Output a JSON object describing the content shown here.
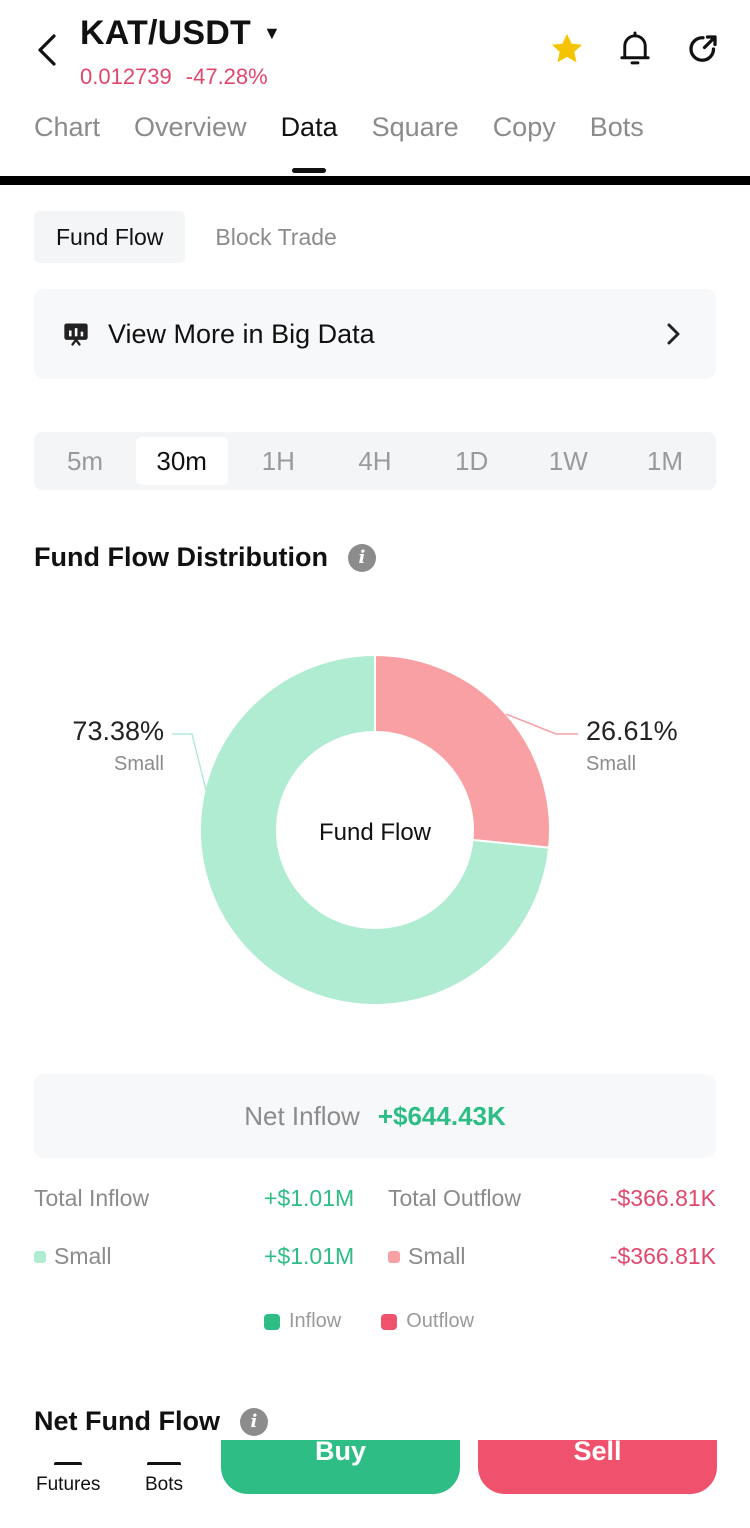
{
  "header": {
    "pair": "KAT/USDT",
    "price": "0.012739",
    "change": "-47.28%",
    "icons": [
      "back-chevron-icon",
      "star-icon",
      "bell-icon",
      "share-icon"
    ]
  },
  "tabs": [
    {
      "label": "Chart"
    },
    {
      "label": "Overview"
    },
    {
      "label": "Data",
      "active": true
    },
    {
      "label": "Square"
    },
    {
      "label": "Copy"
    },
    {
      "label": "Bots"
    }
  ],
  "subtabs": [
    {
      "label": "Fund Flow",
      "active": true
    },
    {
      "label": "Block Trade"
    }
  ],
  "banner": {
    "label": "View More in Big Data"
  },
  "intervals": [
    {
      "label": "5m"
    },
    {
      "label": "30m",
      "active": true
    },
    {
      "label": "1H"
    },
    {
      "label": "4H"
    },
    {
      "label": "1D"
    },
    {
      "label": "1W"
    },
    {
      "label": "1M"
    }
  ],
  "distribution": {
    "title": "Fund Flow Distribution",
    "center_label": "Fund Flow"
  },
  "chart_data": {
    "type": "pie",
    "donut": true,
    "center_label": "Fund Flow",
    "slices": [
      {
        "label": "Small",
        "group": "Outflow",
        "percent_label": "26.61%",
        "value": 26.61,
        "color": "#f9a0a4"
      },
      {
        "label": "Small",
        "group": "Inflow",
        "percent_label": "73.38%",
        "value": 73.38,
        "color": "#b0ecd2"
      }
    ]
  },
  "net": {
    "label": "Net Inflow",
    "value": "+$644.43K"
  },
  "totals": {
    "inflow_label": "Total Inflow",
    "inflow_value": "+$1.01M",
    "outflow_label": "Total Outflow",
    "outflow_value": "-$366.81K"
  },
  "breakdown": {
    "inflow_small_label": "Small",
    "inflow_small_value": "+$1.01M",
    "outflow_small_label": "Small",
    "outflow_small_value": "-$366.81K"
  },
  "legend": {
    "inflow": "Inflow",
    "outflow": "Outflow"
  },
  "colors": {
    "inflow": "#2ebd85",
    "outflow": "#f0516c",
    "inflow_light": "#b0ecd2",
    "outflow_light": "#f9a0a4",
    "star": "#f5c400"
  },
  "net_fund_flow": {
    "title": "Net Fund Flow"
  },
  "bottom_bar": {
    "futures": "Futures",
    "bots": "Bots",
    "buy": "Buy",
    "sell": "Sell"
  }
}
